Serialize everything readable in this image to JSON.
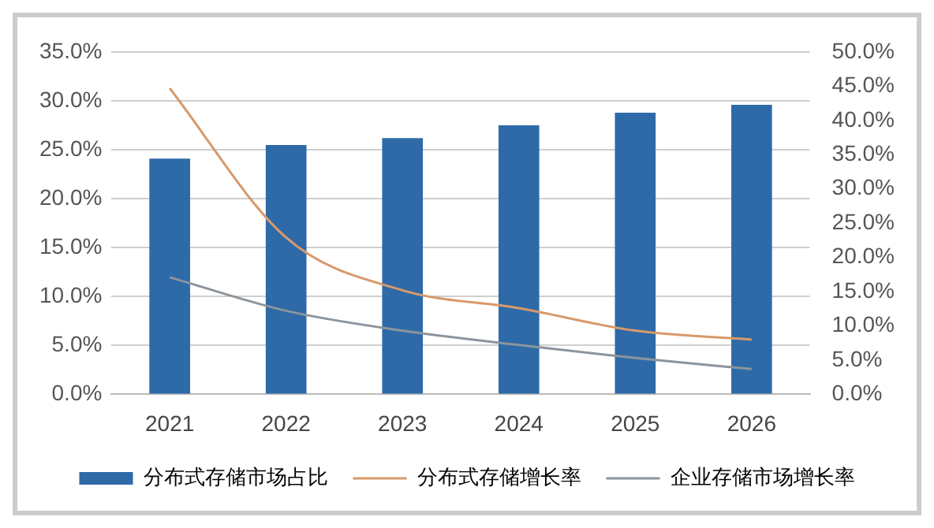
{
  "chart_data": {
    "type": "bar",
    "categories": [
      "2021",
      "2022",
      "2023",
      "2024",
      "2025",
      "2026"
    ],
    "series": [
      {
        "name": "分布式存储市场占比",
        "color": "#2e6aa8",
        "values": [
          24.1,
          25.5,
          26.2,
          27.5,
          28.8,
          29.6
        ]
      },
      {
        "name": "分布式存储增长率",
        "type": "line",
        "axis": "y2",
        "color": "#d9996a",
        "values": [
          44.7,
          22.9,
          15.2,
          12.6,
          9.3,
          8.0
        ]
      },
      {
        "name": "企业存储市场增长率",
        "type": "line",
        "axis": "y2",
        "color": "#8c949c",
        "values": [
          17.1,
          12.2,
          9.3,
          7.2,
          5.3,
          3.7
        ]
      }
    ],
    "ylim": [
      0,
      35
    ],
    "yticks": [
      {
        "value": 0,
        "label": "0.0%"
      },
      {
        "value": 5,
        "label": "5.0%"
      },
      {
        "value": 10,
        "label": "10.0%"
      },
      {
        "value": 15,
        "label": "15.0%"
      },
      {
        "value": 20,
        "label": "20.0%"
      },
      {
        "value": 25,
        "label": "25.0%"
      },
      {
        "value": 30,
        "label": "30.0%"
      },
      {
        "value": 35,
        "label": "35.0%"
      }
    ],
    "y2lim": [
      0,
      50
    ],
    "y2ticks": [
      {
        "value": 0,
        "label": "0.0%"
      },
      {
        "value": 5,
        "label": "5.0%"
      },
      {
        "value": 10,
        "label": "10.0%"
      },
      {
        "value": 15,
        "label": "15.0%"
      },
      {
        "value": 20,
        "label": "20.0%"
      },
      {
        "value": 25,
        "label": "25.0%"
      },
      {
        "value": 30,
        "label": "30.0%"
      },
      {
        "value": 35,
        "label": "35.0%"
      },
      {
        "value": 40,
        "label": "40.0%"
      },
      {
        "value": 45,
        "label": "45.0%"
      },
      {
        "value": 50,
        "label": "50.0%"
      }
    ],
    "grid": "y",
    "legend": "bottom",
    "marker": "none",
    "line_style": "solid"
  }
}
